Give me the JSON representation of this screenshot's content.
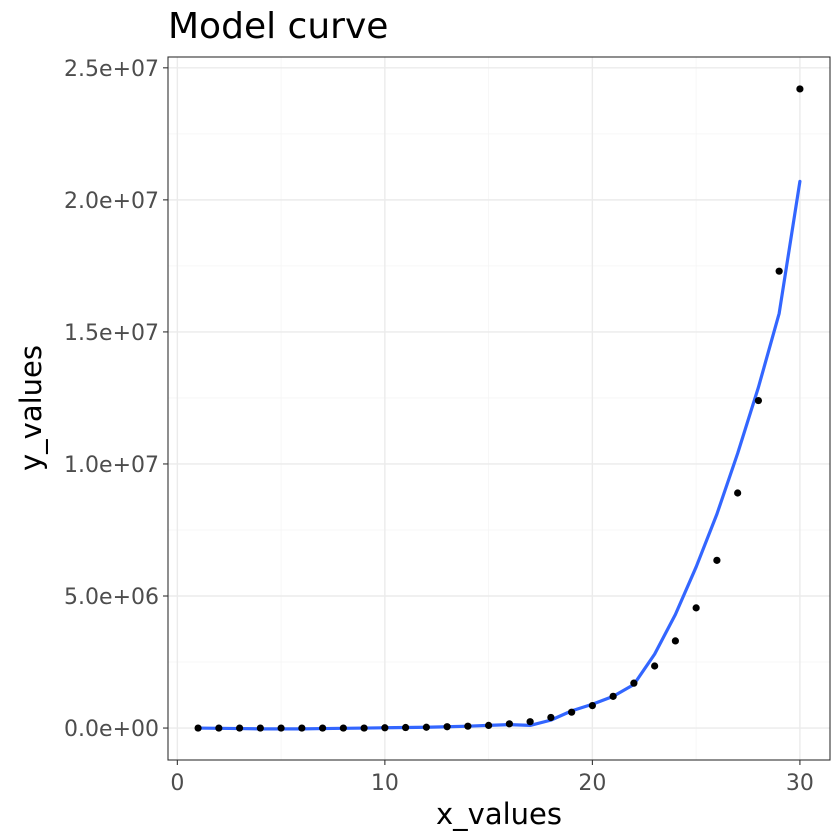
{
  "chart_data": {
    "type": "scatter",
    "title": "Model curve",
    "xlabel": "x_values",
    "ylabel": "y_values",
    "xlim": [
      -0.45,
      31.45
    ],
    "ylim": [
      -1210000,
      25410000
    ],
    "x_ticks": [
      0,
      10,
      20,
      30
    ],
    "x_tick_labels": [
      "0",
      "10",
      "20",
      "30"
    ],
    "y_ticks": [
      0,
      5000000,
      10000000,
      15000000,
      20000000,
      25000000
    ],
    "y_tick_labels": [
      "0.0e+00",
      "5.0e+06",
      "1.0e+07",
      "1.5e+07",
      "2.0e+07",
      "2.5e+07"
    ],
    "grid": true,
    "legend": "none",
    "series": [
      {
        "kind": "points",
        "color": "#000000",
        "x": [
          1,
          2,
          3,
          4,
          5,
          6,
          7,
          8,
          9,
          10,
          11,
          12,
          13,
          14,
          15,
          16,
          17,
          18,
          19,
          20,
          21,
          22,
          23,
          24,
          25,
          26,
          27,
          28,
          29,
          30
        ],
        "y": [
          0,
          0,
          0,
          0,
          0,
          0,
          0,
          0,
          0,
          10000,
          20000,
          30000,
          50000,
          70000,
          100000,
          160000,
          240000,
          400000,
          600000,
          850000,
          1200000,
          1700000,
          2350000,
          3300000,
          4550000,
          6350000,
          8900000,
          12400000,
          17300000,
          24200000
        ]
      },
      {
        "kind": "line",
        "color": "#3366ff",
        "x": [
          1,
          2,
          3,
          4,
          5,
          6,
          7,
          8,
          9,
          10,
          11,
          12,
          13,
          14,
          15,
          16,
          17,
          18,
          19,
          20,
          21,
          22,
          23,
          24,
          25,
          26,
          27,
          28,
          29,
          30
        ],
        "y": [
          0,
          -10000,
          -20000,
          -30000,
          -30000,
          -30000,
          -20000,
          -10000,
          0,
          10000,
          20000,
          30000,
          50000,
          70000,
          100000,
          130000,
          100000,
          300000,
          650000,
          900000,
          1200000,
          1650000,
          2800000,
          4300000,
          6100000,
          8100000,
          10400000,
          12900000,
          15700000,
          20700000
        ]
      }
    ]
  }
}
